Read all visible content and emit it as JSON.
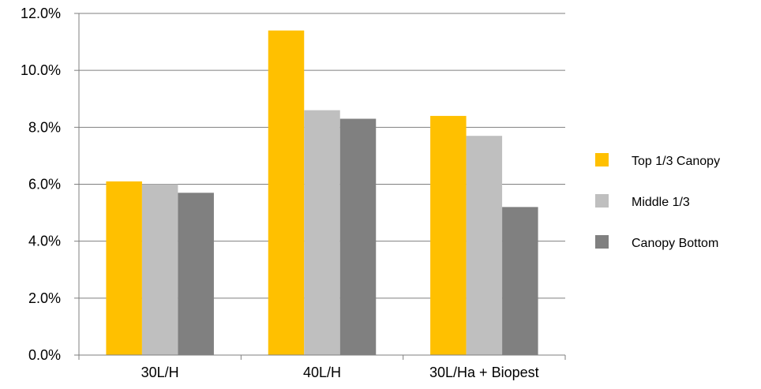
{
  "chart_data": {
    "type": "bar",
    "categories": [
      "30L/H",
      "40L/H",
      "30L/Ha + Biopest"
    ],
    "series": [
      {
        "name": "Top 1/3 Canopy",
        "color": "#ffc000",
        "values": [
          6.1,
          11.4,
          8.4
        ]
      },
      {
        "name": "Middle 1/3",
        "color": "#bfbfbf",
        "values": [
          6.0,
          8.6,
          7.7
        ]
      },
      {
        "name": "Canopy Bottom",
        "color": "#808080",
        "values": [
          5.7,
          8.3,
          5.2
        ]
      }
    ],
    "ylim": [
      0,
      12
    ],
    "yticks": [
      0,
      2,
      4,
      6,
      8,
      10,
      12
    ],
    "ytick_labels": [
      "0.0%",
      "2.0%",
      "4.0%",
      "6.0%",
      "8.0%",
      "10.0%",
      "12.0%"
    ],
    "grid": true,
    "legend_position": "right"
  }
}
